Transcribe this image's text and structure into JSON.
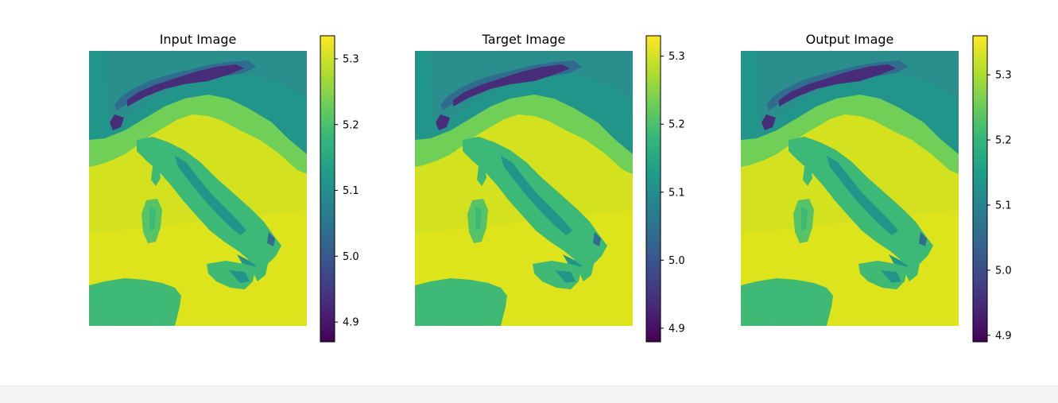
{
  "figure": {
    "panels": [
      {
        "title": "Input Image"
      },
      {
        "title": "Target Image"
      },
      {
        "title": "Output Image"
      }
    ]
  },
  "chart_data": [
    {
      "type": "heatmap",
      "title": "Input Image",
      "colormap": "viridis",
      "axis": "off",
      "colorbar": {
        "vmin": 4.87,
        "vmax": 5.335,
        "ticks": [
          4.9,
          5.0,
          5.1,
          5.2,
          5.3
        ],
        "tick_labels": [
          "4.9",
          "5.0",
          "5.1",
          "5.2",
          "5.3"
        ]
      }
    },
    {
      "type": "heatmap",
      "title": "Target Image",
      "colormap": "viridis",
      "axis": "off",
      "colorbar": {
        "vmin": 4.88,
        "vmax": 5.33,
        "ticks": [
          4.9,
          5.0,
          5.1,
          5.2,
          5.3
        ],
        "tick_labels": [
          "4.9",
          "5.0",
          "5.1",
          "5.2",
          "5.3"
        ]
      }
    },
    {
      "type": "heatmap",
      "title": "Output Image",
      "colormap": "viridis",
      "axis": "off",
      "colorbar": {
        "vmin": 4.89,
        "vmax": 5.36,
        "ticks": [
          4.9,
          5.0,
          5.1,
          5.2,
          5.3
        ],
        "tick_labels": [
          "4.9",
          "5.0",
          "5.1",
          "5.2",
          "5.3"
        ]
      }
    }
  ],
  "colors": {
    "viridis": [
      "#440154",
      "#482878",
      "#3e4989",
      "#31688e",
      "#26828e",
      "#1f9e89",
      "#35b779",
      "#6ece58",
      "#b5de2b",
      "#fde725"
    ],
    "sea": "#d4e11f",
    "sea_south": "#dde41c",
    "lowland": "#6fcf57",
    "hills": "#3cb877",
    "foothills": "#22958b",
    "mountains": "#2f6c8e",
    "peaks": "#472c7a",
    "north_plain": "#2a8f8c",
    "sicily": "#3fb974",
    "sardinia": "#56c466"
  },
  "footer": {}
}
